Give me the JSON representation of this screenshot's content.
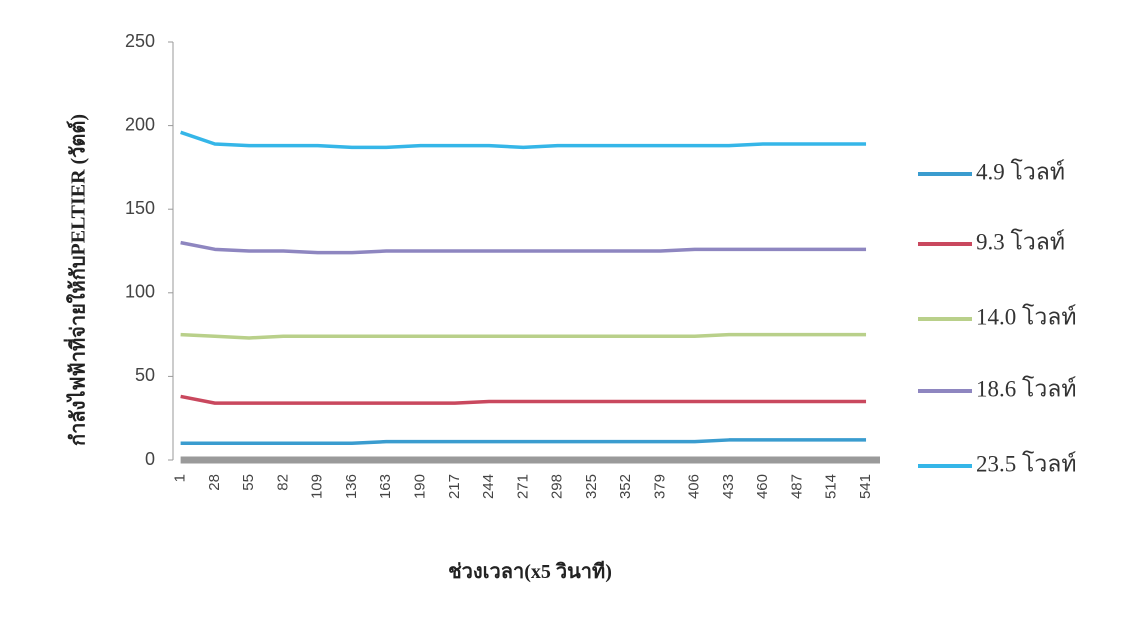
{
  "chart_data": {
    "type": "line",
    "x_label": "ช่วงเวลา(x5 วินาที)",
    "y_label": "กำลังไฟฟ้าที่จ่ายให้กับPELTIER (วัตต์)",
    "x": [
      1,
      28,
      55,
      82,
      109,
      136,
      163,
      190,
      217,
      244,
      271,
      298,
      325,
      352,
      379,
      406,
      433,
      460,
      487,
      514,
      541
    ],
    "xlim": [
      -5,
      552
    ],
    "xticks": [
      1,
      28,
      55,
      82,
      109,
      136,
      163,
      190,
      217,
      244,
      271,
      298,
      325,
      352,
      379,
      406,
      433,
      460,
      487,
      514,
      541
    ],
    "ylim": [
      0,
      250
    ],
    "yticks": [
      0,
      50,
      100,
      150,
      200,
      250
    ],
    "grid": false,
    "legend": "right",
    "series": [
      {
        "name": "4.9 โวลท์",
        "color": "#3a9ccf",
        "values": [
          10,
          10,
          10,
          10,
          10,
          10,
          11,
          11,
          11,
          11,
          11,
          11,
          11,
          11,
          11,
          11,
          12,
          12,
          12,
          12,
          12
        ]
      },
      {
        "name": "9.3 โวลท์",
        "color": "#c9485e",
        "values": [
          38,
          34,
          34,
          34,
          34,
          34,
          34,
          34,
          34,
          35,
          35,
          35,
          35,
          35,
          35,
          35,
          35,
          35,
          35,
          35,
          35
        ]
      },
      {
        "name": "14.0 โวลท์",
        "color": "#b9d08a",
        "values": [
          75,
          74,
          73,
          74,
          74,
          74,
          74,
          74,
          74,
          74,
          74,
          74,
          74,
          74,
          74,
          74,
          75,
          75,
          75,
          75,
          75
        ]
      },
      {
        "name": "18.6 โวลท์",
        "color": "#8e86c0",
        "values": [
          130,
          126,
          125,
          125,
          124,
          124,
          125,
          125,
          125,
          125,
          125,
          125,
          125,
          125,
          125,
          126,
          126,
          126,
          126,
          126,
          126
        ]
      },
      {
        "name": "23.5 โวลท์",
        "color": "#35b6e8",
        "values": [
          196,
          189,
          188,
          188,
          188,
          187,
          187,
          188,
          188,
          188,
          187,
          188,
          188,
          188,
          188,
          188,
          188,
          189,
          189,
          189,
          189
        ]
      }
    ]
  }
}
